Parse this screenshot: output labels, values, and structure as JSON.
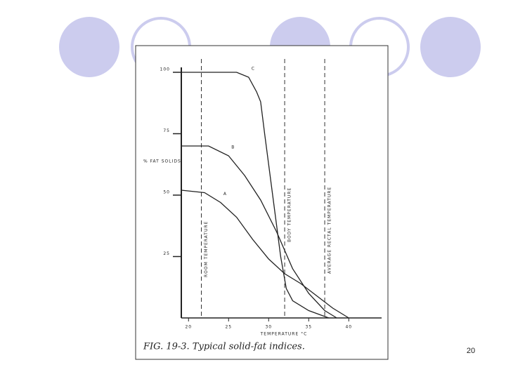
{
  "chart_data": {
    "type": "line",
    "caption": "FIG. 19-3. Typical solid-fat indices.",
    "ylabel": "% FAT SOLIDS",
    "xlabel": "TEMPERATURE °C",
    "xlim": [
      19.1,
      44.1
    ],
    "xticks": [
      20,
      25,
      30,
      35,
      40
    ],
    "ylim": [
      0,
      102
    ],
    "yticks": [
      25,
      50,
      75,
      100
    ],
    "series": [
      {
        "name": "A",
        "color": "#222222",
        "x": [
          19.1,
          22,
          24,
          26,
          28,
          30,
          32,
          34,
          36,
          38,
          40
        ],
        "values": [
          52,
          51,
          47,
          41,
          32,
          24,
          18,
          14,
          9,
          4,
          0
        ]
      },
      {
        "name": "B",
        "color": "#222222",
        "x": [
          19.1,
          22.5,
          25,
          27,
          29,
          31,
          33,
          35,
          37,
          38.5
        ],
        "values": [
          70,
          70,
          66,
          58,
          48,
          35,
          20,
          10,
          3,
          0
        ]
      },
      {
        "name": "C",
        "color": "#222222",
        "x": [
          19.1,
          26,
          27.5,
          28.5,
          29,
          29.5,
          30.5,
          31.5,
          32.2,
          33,
          35,
          37.5
        ],
        "values": [
          100,
          100,
          98,
          92,
          88,
          75,
          50,
          25,
          12,
          7,
          3,
          0
        ]
      }
    ],
    "vlines": [
      {
        "x": 21.6,
        "label": "ROOM TEMPERATURE"
      },
      {
        "x": 32.0,
        "label": "BODY TEMPERATURE"
      },
      {
        "x": 37.0,
        "label": "AVERAGE RECTAL TEMPERATURE"
      }
    ]
  },
  "slide_number": "20"
}
